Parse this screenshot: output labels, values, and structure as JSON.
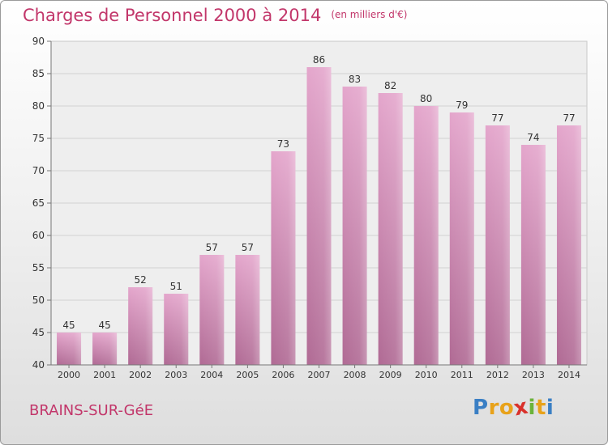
{
  "title": "Charges de Personnel 2000 à 2014",
  "subtitle": "(en milliers d'€)",
  "commune": "BRAINS-SUR-GéE",
  "logo": {
    "letters": [
      "P",
      "r",
      "o",
      "x",
      "i",
      "t",
      "i"
    ],
    "colors": [
      "#3a7fc4",
      "#e8a21a",
      "#e8a21a",
      "#d9312b",
      "#6bb33a",
      "#e8a21a",
      "#3a7fc4"
    ]
  },
  "colors": {
    "bar_top": "#e4a6cc",
    "bar_bottom": "#b06a94",
    "accent": "#c2366a"
  },
  "chart_data": {
    "type": "bar",
    "categories": [
      "2000",
      "2001",
      "2002",
      "2003",
      "2004",
      "2005",
      "2006",
      "2007",
      "2008",
      "2009",
      "2010",
      "2011",
      "2012",
      "2013",
      "2014"
    ],
    "values": [
      45,
      45,
      52,
      51,
      57,
      57,
      73,
      86,
      83,
      82,
      80,
      79,
      77,
      74,
      77
    ],
    "ylim": [
      40,
      90
    ],
    "yticks": [
      40,
      45,
      50,
      55,
      60,
      65,
      70,
      75,
      80,
      85,
      90
    ],
    "grid": true,
    "xlabel": "",
    "ylabel": ""
  }
}
